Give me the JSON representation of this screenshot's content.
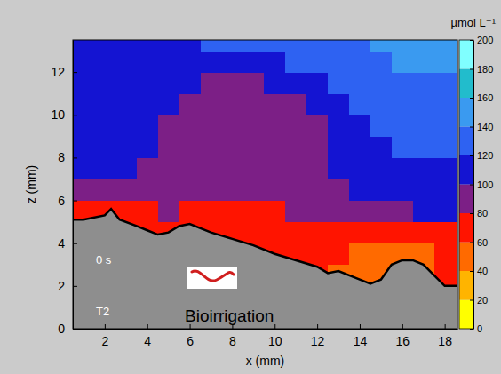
{
  "chart_data": {
    "type": "heatmap",
    "x_label": "x (mm)",
    "y_label": "z (mm)",
    "xlim": [
      0.5,
      18.6
    ],
    "ylim": [
      0,
      13.5
    ],
    "xticks": [
      2,
      4,
      6,
      8,
      10,
      12,
      14,
      16,
      18
    ],
    "yticks": [
      0,
      2,
      4,
      6,
      8,
      10,
      12
    ],
    "x": [
      1,
      2,
      3,
      4,
      5,
      6,
      7,
      8,
      9,
      10,
      11,
      12,
      13,
      14,
      15,
      16,
      17,
      18,
      19
    ],
    "z": [
      2.5,
      3.5,
      4.5,
      5.5,
      6.5,
      7.5,
      8.5,
      9.5,
      10.5,
      11.5,
      12.5,
      13.5
    ],
    "cells": [
      [
        null,
        null,
        null,
        null,
        null,
        null,
        null,
        null,
        null,
        null,
        null,
        60,
        55,
        48,
        45,
        null,
        55,
        60,
        62
      ],
      [
        null,
        null,
        null,
        null,
        null,
        null,
        null,
        null,
        68,
        65,
        65,
        62,
        60,
        55,
        50,
        55,
        58,
        65,
        68
      ],
      [
        null,
        null,
        70,
        70,
        68,
        70,
        68,
        68,
        68,
        68,
        70,
        72,
        72,
        72,
        70,
        70,
        72,
        75,
        75
      ],
      [
        68,
        68,
        72,
        78,
        80,
        75,
        70,
        70,
        72,
        75,
        82,
        85,
        88,
        92,
        95,
        98,
        100,
        100,
        100
      ],
      [
        95,
        95,
        90,
        90,
        88,
        85,
        85,
        85,
        82,
        85,
        88,
        92,
        98,
        100,
        105,
        108,
        110,
        110,
        110
      ],
      [
        105,
        105,
        100,
        95,
        90,
        85,
        85,
        85,
        85,
        85,
        88,
        92,
        100,
        105,
        110,
        112,
        115,
        115,
        115
      ],
      [
        110,
        105,
        105,
        100,
        90,
        88,
        88,
        88,
        88,
        88,
        88,
        92,
        100,
        110,
        115,
        120,
        120,
        120,
        120
      ],
      [
        110,
        105,
        105,
        100,
        95,
        90,
        90,
        88,
        88,
        88,
        90,
        95,
        105,
        115,
        120,
        125,
        125,
        125,
        125
      ],
      [
        110,
        105,
        105,
        100,
        100,
        95,
        90,
        90,
        90,
        90,
        95,
        105,
        115,
        125,
        125,
        130,
        130,
        130,
        130
      ],
      [
        110,
        105,
        105,
        105,
        105,
        100,
        95,
        95,
        95,
        100,
        105,
        115,
        125,
        130,
        130,
        135,
        135,
        135,
        135
      ],
      [
        110,
        110,
        105,
        105,
        105,
        110,
        110,
        115,
        115,
        115,
        120,
        125,
        130,
        135,
        135,
        140,
        140,
        140,
        140
      ],
      [
        110,
        110,
        105,
        105,
        110,
        115,
        120,
        125,
        125,
        125,
        125,
        130,
        135,
        135,
        140,
        140,
        140,
        145,
        145
      ]
    ],
    "colorbar": {
      "label": "µmol L⁻¹",
      "range": [
        0,
        200
      ],
      "ticks": [
        0,
        20,
        40,
        60,
        80,
        100,
        120,
        140,
        160,
        180,
        200
      ]
    },
    "interface": {
      "x": [
        0.5,
        1,
        2,
        2.3,
        2.7,
        3.5,
        4,
        4.5,
        5,
        5.5,
        6,
        6.5,
        7,
        8,
        9,
        10,
        11,
        12,
        12.5,
        13,
        14,
        14.5,
        15,
        15.5,
        16,
        16.5,
        17,
        17.5,
        18,
        18.6
      ],
      "z": [
        5.1,
        5.1,
        5.3,
        5.6,
        5.1,
        4.8,
        4.6,
        4.4,
        4.5,
        4.8,
        4.9,
        4.7,
        4.5,
        4.2,
        3.9,
        3.5,
        3.2,
        2.9,
        2.6,
        2.7,
        2.3,
        2.1,
        2.3,
        3.0,
        3.2,
        3.2,
        3.0,
        2.5,
        2.0,
        2.0
      ]
    },
    "annotations": [
      "0 s",
      "T2",
      "Bioirrigation"
    ]
  }
}
